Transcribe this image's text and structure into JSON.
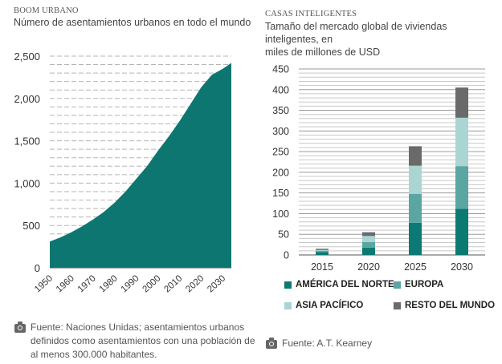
{
  "left": {
    "kicker": "BOOM URBANO",
    "subtitle": "Número de asentamientos urbanos en todo el mundo",
    "source": "Fuente: Naciones Unidas; asentamientos urbanos definidos como asentamientos con una población de al menos 300.000 habitantes.",
    "source_lines": [
      "Fuente: Naciones Unidas; asentamientos urbanos",
      "definidos como asentamientos con una población de",
      "al menos 300.000 habitantes."
    ]
  },
  "right": {
    "kicker": "CASAS INTELIGENTES",
    "subtitle_lines": [
      "Tamaño del mercado global de viviendas inteligentes, en",
      "miles de millones de USD"
    ],
    "source": "Fuente: A.T. Kearney"
  },
  "colors": {
    "teal_area": "#0e7670",
    "america": "#0c7a72",
    "europa": "#5aa6a2",
    "asia": "#aad5d3",
    "resto": "#6a6a6a"
  },
  "chart_data": [
    {
      "type": "area",
      "title": "Número de asentamientos urbanos en todo el mundo",
      "x": [
        1950,
        1955,
        1960,
        1965,
        1970,
        1975,
        1980,
        1985,
        1990,
        1995,
        2000,
        2005,
        2010,
        2015,
        2020,
        2025,
        2030,
        2035
      ],
      "y": [
        310,
        360,
        420,
        490,
        570,
        660,
        770,
        900,
        1050,
        1200,
        1380,
        1550,
        1730,
        1930,
        2130,
        2280,
        2350,
        2420
      ],
      "x_ticks": [
        "1950",
        "1960",
        "1970",
        "1980",
        "1990",
        "2000",
        "2010",
        "2020",
        "2030"
      ],
      "y_ticks": [
        "0",
        "500",
        "1,000",
        "1,500",
        "2,000",
        "2,500"
      ],
      "ylim": [
        0,
        2500
      ],
      "grid": true
    },
    {
      "type": "bar",
      "stacked": true,
      "title": "Tamaño del mercado global de viviendas inteligentes, en miles de millones de USD",
      "categories": [
        "2015",
        "2020",
        "2025",
        "2030"
      ],
      "series": [
        {
          "name": "AMÉRICA DEL NORTE",
          "values": [
            7,
            18,
            78,
            112
          ]
        },
        {
          "name": "EUROPA",
          "values": [
            3,
            13,
            70,
            103
          ]
        },
        {
          "name": "ASIA PACÍFICO",
          "values": [
            2,
            15,
            68,
            117
          ]
        },
        {
          "name": "RESTO DEL MUNDO",
          "values": [
            3,
            9,
            47,
            73
          ]
        }
      ],
      "y_ticks": [
        "0",
        "50",
        "100",
        "150",
        "200",
        "250",
        "300",
        "350",
        "400",
        "450"
      ],
      "ylim": [
        0,
        450
      ],
      "legend_position": "bottom"
    }
  ]
}
